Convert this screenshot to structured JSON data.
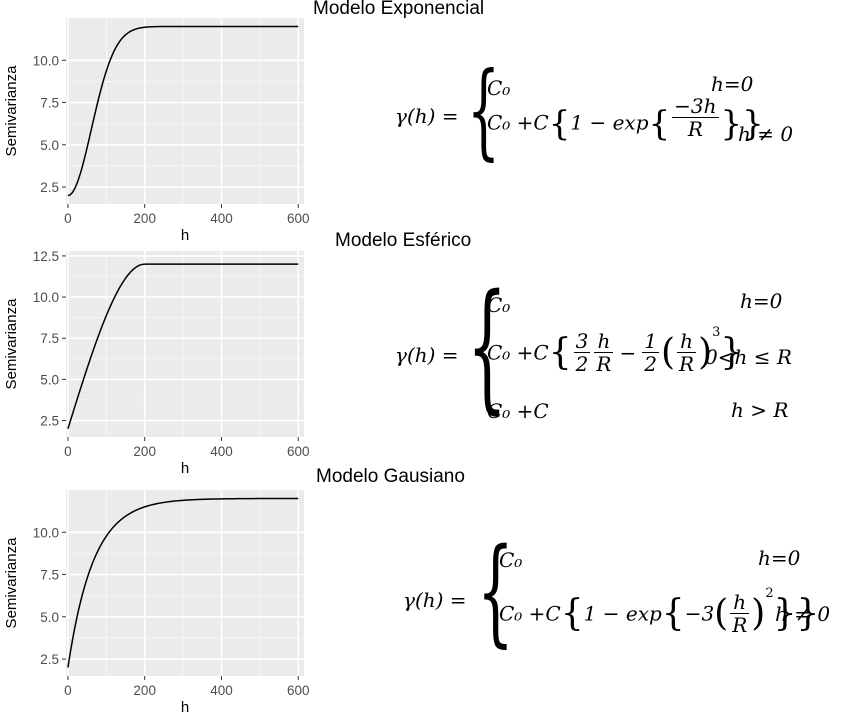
{
  "titles": [
    "Modelo Exponencial",
    "Modelo Esférico",
    "Modelo Gausiano"
  ],
  "formulas": {
    "exponential": {
      "lhs": "γ(h) =",
      "row1_expr": "C₀",
      "row1_cond": "h=0",
      "row2_prefix": "C₀ +C",
      "row2_mid": "1 − exp",
      "frac_num": "−3h",
      "frac_den": "R",
      "row2_cond": "h ≠ 0"
    },
    "spherical": {
      "lhs": "γ(h) =",
      "row1_expr": "C₀",
      "row1_cond": "h=0",
      "row2_prefix": "C₀ +C",
      "f1_num": "3",
      "f1_den": "2",
      "f2_num": "h",
      "f2_den": "R",
      "minus": "−",
      "f3_num": "1",
      "f3_den": "2",
      "f4_num": "h",
      "f4_den": "R",
      "exponent": "3",
      "row2_cond": "0<h ≤ R",
      "row3_expr": "C₀ +C",
      "row3_cond": "h > R"
    },
    "gaussian": {
      "lhs": "γ(h) =",
      "row1_expr": "C₀",
      "row1_cond": "h=0",
      "row2_prefix": "C₀ +C",
      "row2_mid": "1 − exp",
      "coef": "−3",
      "f_num": "h",
      "f_den": "R",
      "exponent": "2",
      "row2_cond": "h ≠ 0"
    }
  },
  "chart_data": [
    {
      "type": "line",
      "model": "exponential",
      "xlabel": "h",
      "ylabel": "Semivarianza",
      "xlim": [
        -5,
        615
      ],
      "ylim": [
        1.5,
        12.5
      ],
      "xticks": [
        0,
        200,
        400,
        600
      ],
      "yticks": [
        2.5,
        5.0,
        7.5,
        10.0
      ],
      "ytick_labels": [
        "2.5",
        "5.0",
        "7.5",
        "10.0"
      ],
      "xtick_labels": [
        "0",
        "200",
        "400",
        "600"
      ],
      "grid": true,
      "series": [
        {
          "nugget": 2,
          "sill": 12,
          "range": 150,
          "line_color": "#000000",
          "x": [
            0,
            25,
            50,
            75,
            100,
            125,
            150,
            175,
            200,
            225,
            250,
            275,
            300,
            350,
            400,
            500,
            600
          ],
          "y": [
            2.0,
            2.6,
            4.1,
            6.1,
            8.0,
            9.6,
            10.8,
            11.5,
            11.8,
            11.95,
            12.0,
            12.0,
            12.0,
            12.0,
            12.0,
            12.0,
            12.0
          ]
        }
      ],
      "panel_bg": "#ebebeb"
    },
    {
      "type": "line",
      "model": "spherical",
      "xlabel": "h",
      "ylabel": "Semivarianza",
      "xlim": [
        -5,
        615
      ],
      "ylim": [
        1.5,
        12.8
      ],
      "xticks": [
        0,
        200,
        400,
        600
      ],
      "yticks": [
        2.5,
        5.0,
        7.5,
        10.0,
        12.5
      ],
      "ytick_labels": [
        "2.5",
        "5.0",
        "7.5",
        "10.0",
        "12.5"
      ],
      "xtick_labels": [
        "0",
        "200",
        "400",
        "600"
      ],
      "grid": true,
      "series": [
        {
          "nugget": 2,
          "sill": 12,
          "range": 200,
          "line_color": "#000000",
          "x": [
            0,
            25,
            50,
            75,
            100,
            125,
            150,
            175,
            200,
            300,
            400,
            500,
            600
          ],
          "y": [
            2.0,
            3.9,
            5.7,
            7.5,
            9.1,
            10.4,
            11.3,
            11.9,
            12.0,
            12.0,
            12.0,
            12.0,
            12.0
          ]
        }
      ],
      "panel_bg": "#ebebeb"
    },
    {
      "type": "line",
      "model": "gaussian",
      "xlabel": "h",
      "ylabel": "Semivarianza",
      "xlim": [
        -5,
        615
      ],
      "ylim": [
        1.5,
        12.5
      ],
      "xticks": [
        0,
        200,
        400,
        600
      ],
      "yticks": [
        2.5,
        5.0,
        7.5,
        10.0
      ],
      "ytick_labels": [
        "2.5",
        "5.0",
        "7.5",
        "10.0"
      ],
      "xtick_labels": [
        "0",
        "200",
        "400",
        "600"
      ],
      "grid": true,
      "series": [
        {
          "nugget": 2,
          "sill": 12,
          "range": 200,
          "line_color": "#000000",
          "x": [
            0,
            25,
            50,
            75,
            100,
            125,
            150,
            200,
            250,
            300,
            350,
            400,
            500,
            600
          ],
          "y": [
            2.0,
            5.1,
            7.4,
            8.9,
            9.9,
            10.6,
            11.1,
            11.6,
            11.8,
            11.9,
            11.95,
            12.0,
            12.0,
            12.0
          ]
        }
      ],
      "panel_bg": "#ebebeb"
    }
  ]
}
